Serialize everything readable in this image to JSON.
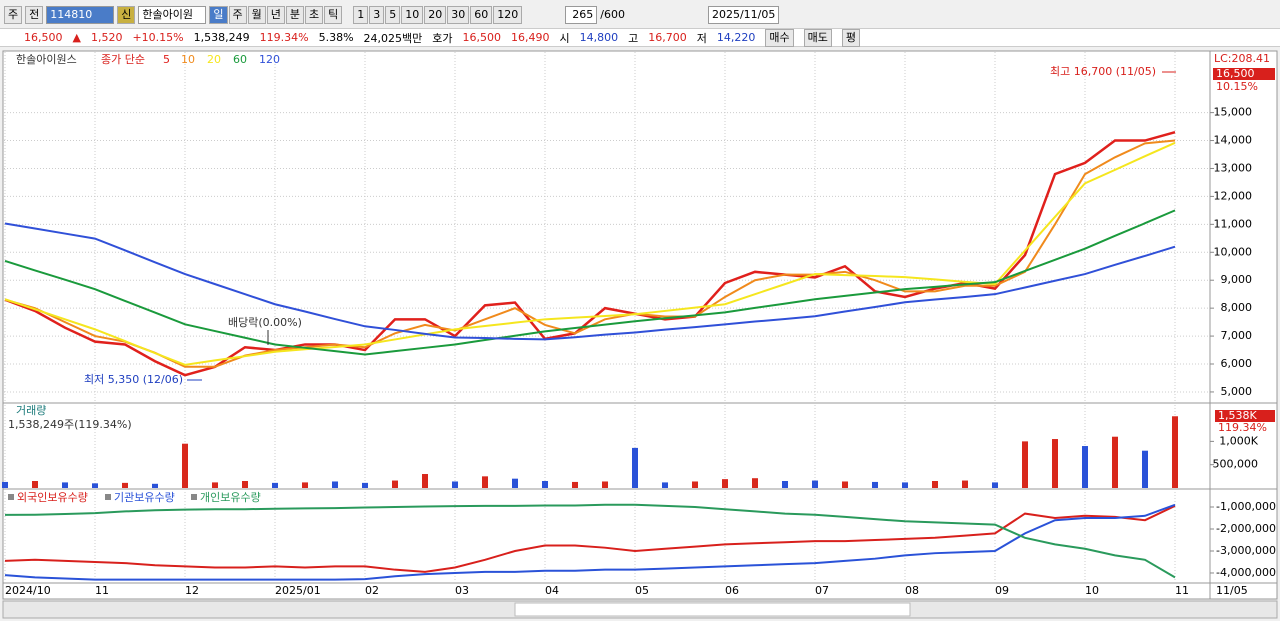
{
  "toolbar": {
    "view": "주",
    "scope": "전",
    "code": "114810",
    "badge": "신",
    "name": "한솔아이원",
    "periods": [
      "일",
      "주",
      "월",
      "년",
      "분",
      "초",
      "틱"
    ],
    "intervals": [
      "1",
      "3",
      "5",
      "10",
      "20",
      "30",
      "60",
      "120"
    ],
    "count": "265",
    "max_count": "/600",
    "date": "2025/11/05"
  },
  "quote": {
    "price": "16,500",
    "arrow": "▲",
    "change": "1,520",
    "change_pct": "+10.15%",
    "volume": "1,538,249",
    "volume_ratio": "119.34%",
    "turnover": "5.38%",
    "amount": "24,025백만",
    "ask_label": "호가",
    "ask": "16,500",
    "bid": "16,490",
    "open_label": "시",
    "open": "14,800",
    "high_label": "고",
    "high": "16,700",
    "low_label": "저",
    "low": "14,220",
    "buy": "매수",
    "sell": "매도",
    "avg": "평"
  },
  "x_end_label": "11/05",
  "chart_data": [
    {
      "type": "line",
      "title": "한솔아이원스",
      "subtitle": "종가 단순",
      "categories": [
        "2024/10",
        null,
        null,
        "11",
        null,
        null,
        "12",
        null,
        null,
        "2025/01",
        null,
        null,
        "02",
        null,
        null,
        "03",
        null,
        null,
        "04",
        null,
        null,
        "05",
        null,
        null,
        "06",
        null,
        null,
        "07",
        null,
        null,
        "08",
        null,
        null,
        "09",
        null,
        null,
        "10",
        null,
        null,
        "11"
      ],
      "series": [
        {
          "name": "5",
          "color": "#e0201c",
          "values": [
            8300,
            7900,
            7300,
            6800,
            6700,
            6100,
            5600,
            5900,
            6600,
            6500,
            6700,
            6700,
            6500,
            7600,
            7600,
            7000,
            8100,
            8200,
            6900,
            7100,
            8000,
            7800,
            7600,
            7700,
            8900,
            9300,
            9200,
            9100,
            9500,
            8600,
            8400,
            8700,
            8900,
            8700,
            9900,
            12800,
            13200,
            14000,
            14000,
            14300
          ]
        },
        {
          "name": "10",
          "color": "#f08a1c",
          "values": [
            8300,
            8000,
            7500,
            7000,
            6800,
            6400,
            5900,
            5900,
            6300,
            6500,
            6600,
            6700,
            6600,
            7100,
            7400,
            7200,
            7600,
            8000,
            7400,
            7100,
            7600,
            7800,
            7700,
            7700,
            8400,
            9000,
            9200,
            9200,
            9300,
            9000,
            8600,
            8600,
            8800,
            8800,
            9300,
            11000,
            12800,
            13400,
            13900,
            14000
          ]
        },
        {
          "name": "20",
          "color": "#f5e61e",
          "values": [
            8320,
            7960,
            7600,
            7240,
            6820,
            6390,
            5970,
            6130,
            6280,
            6440,
            6530,
            6610,
            6700,
            6880,
            7060,
            7240,
            7360,
            7480,
            7600,
            7660,
            7720,
            7780,
            7900,
            8020,
            8140,
            8500,
            8860,
            9220,
            9180,
            9150,
            9110,
            9030,
            8940,
            8860,
            10060,
            11270,
            12470,
            12950,
            13440,
            13920
          ]
        },
        {
          "name": "60",
          "color": "#1a9a3c",
          "values": [
            9690,
            9350,
            9020,
            8680,
            8260,
            7840,
            7420,
            7180,
            6940,
            6700,
            6580,
            6460,
            6340,
            6460,
            6580,
            6700,
            6860,
            7010,
            7170,
            7290,
            7410,
            7530,
            7640,
            7740,
            7850,
            8010,
            8160,
            8320,
            8440,
            8560,
            8680,
            8760,
            8850,
            8930,
            9330,
            9730,
            10130,
            10590,
            11040,
            11500
          ]
        },
        {
          "name": "120",
          "color": "#3050d8",
          "values": [
            11030,
            10850,
            10670,
            10490,
            10070,
            9640,
            9220,
            8860,
            8500,
            8140,
            7880,
            7610,
            7350,
            7220,
            7080,
            6950,
            6930,
            6900,
            6880,
            6960,
            7050,
            7130,
            7230,
            7320,
            7420,
            7520,
            7610,
            7710,
            7880,
            8040,
            8210,
            8310,
            8400,
            8500,
            8740,
            8980,
            9220,
            9550,
            9870,
            10200
          ]
        }
      ],
      "ylim": [
        4640,
        17170
      ],
      "yticks": [
        {
          "value": 5000,
          "label": "5,000"
        },
        {
          "value": 6000,
          "label": "6,000"
        },
        {
          "value": 7000,
          "label": "7,000"
        },
        {
          "value": 8000,
          "label": "8,000"
        },
        {
          "value": 9000,
          "label": "9,000"
        },
        {
          "value": 10000,
          "label": "10,000"
        },
        {
          "value": 11000,
          "label": "11,000"
        },
        {
          "value": 12000,
          "label": "12,000"
        },
        {
          "value": 13000,
          "label": "13,000"
        },
        {
          "value": 14000,
          "label": "14,000"
        },
        {
          "value": 15000,
          "label": "15,000"
        }
      ],
      "grid": true,
      "annotations": [
        "최고 16,700 (11/05)",
        "최저 5,350 (12/06)",
        "배당락(0.00%)"
      ],
      "axis_labels": [
        "LC:208.41",
        "16,500",
        "10.15%"
      ]
    },
    {
      "type": "bar",
      "title": "거래량",
      "subtitle": "1,538,249주(119.34%)",
      "values": [
        130000,
        150000,
        120000,
        100000,
        110000,
        90000,
        950000,
        120000,
        150000,
        110000,
        120000,
        140000,
        110000,
        160000,
        300000,
        140000,
        250000,
        200000,
        150000,
        130000,
        140000,
        860000,
        120000,
        140000,
        190000,
        210000,
        150000,
        160000,
        140000,
        130000,
        120000,
        150000,
        160000,
        120000,
        1000000,
        1050000,
        900000,
        1100000,
        800000,
        1538249
      ],
      "colors": [
        "#2a52d8",
        "#d8281c",
        "#2a52d8",
        "#2a52d8",
        "#d8281c",
        "#2a52d8",
        "#d8281c",
        "#d8281c",
        "#d8281c",
        "#2a52d8",
        "#d8281c",
        "#2a52d8",
        "#2a52d8",
        "#d8281c",
        "#d8281c",
        "#2a52d8",
        "#d8281c",
        "#2a52d8",
        "#2a52d8",
        "#d8281c",
        "#d8281c",
        "#2a52d8",
        "#2a52d8",
        "#d8281c",
        "#d8281c",
        "#d8281c",
        "#2a52d8",
        "#2a52d8",
        "#d8281c",
        "#2a52d8",
        "#2a52d8",
        "#d8281c",
        "#d8281c",
        "#2a52d8",
        "#d8281c",
        "#d8281c",
        "#2a52d8",
        "#d8281c",
        "#2a52d8",
        "#d8281c"
      ],
      "ylim": [
        0,
        1780000
      ],
      "yticks": [
        {
          "value": 500000,
          "label": "500,000"
        },
        {
          "value": 1000000,
          "label": "1,000K"
        }
      ],
      "axis_labels": [
        "1,538K",
        "119.34%"
      ]
    },
    {
      "type": "line",
      "series": [
        {
          "name": "외국인보유수량",
          "color": "#d8201c",
          "values": [
            -3450000,
            -3400000,
            -3450000,
            -3500000,
            -3550000,
            -3650000,
            -3700000,
            -3750000,
            -3750000,
            -3700000,
            -3750000,
            -3700000,
            -3700000,
            -3850000,
            -3950000,
            -3750000,
            -3400000,
            -3000000,
            -2750000,
            -2750000,
            -2850000,
            -3000000,
            -2900000,
            -2800000,
            -2700000,
            -2650000,
            -2600000,
            -2550000,
            -2550000,
            -2500000,
            -2450000,
            -2400000,
            -2300000,
            -2200000,
            -1300000,
            -1500000,
            -1400000,
            -1450000,
            -1600000,
            -950000
          ]
        },
        {
          "name": "기관보유수량",
          "color": "#2a52d8",
          "values": [
            -4100000,
            -4200000,
            -4250000,
            -4300000,
            -4300000,
            -4300000,
            -4300000,
            -4300000,
            -4300000,
            -4300000,
            -4300000,
            -4300000,
            -4280000,
            -4150000,
            -4050000,
            -4000000,
            -3950000,
            -3950000,
            -3900000,
            -3900000,
            -3850000,
            -3850000,
            -3800000,
            -3750000,
            -3700000,
            -3650000,
            -3600000,
            -3550000,
            -3450000,
            -3350000,
            -3200000,
            -3100000,
            -3050000,
            -3000000,
            -2200000,
            -1600000,
            -1500000,
            -1500000,
            -1400000,
            -900000
          ]
        },
        {
          "name": "개인보유수량",
          "color": "#2a9a5c",
          "values": [
            -1360000,
            -1350000,
            -1320000,
            -1280000,
            -1200000,
            -1150000,
            -1120000,
            -1100000,
            -1100000,
            -1080000,
            -1060000,
            -1050000,
            -1020000,
            -1000000,
            -980000,
            -960000,
            -950000,
            -950000,
            -930000,
            -930000,
            -900000,
            -900000,
            -950000,
            -1000000,
            -1100000,
            -1200000,
            -1300000,
            -1350000,
            -1450000,
            -1550000,
            -1650000,
            -1700000,
            -1750000,
            -1800000,
            -2400000,
            -2700000,
            -2900000,
            -3200000,
            -3400000,
            -4200000
          ]
        }
      ],
      "ylim": [
        -4410000,
        -318000
      ],
      "yticks": [
        {
          "value": -1000000,
          "label": "-1,000,000"
        },
        {
          "value": -2000000,
          "label": "-2,000,000"
        },
        {
          "value": -3000000,
          "label": "-3,000,000"
        },
        {
          "value": -4000000,
          "label": "-4,000,000"
        }
      ]
    }
  ]
}
